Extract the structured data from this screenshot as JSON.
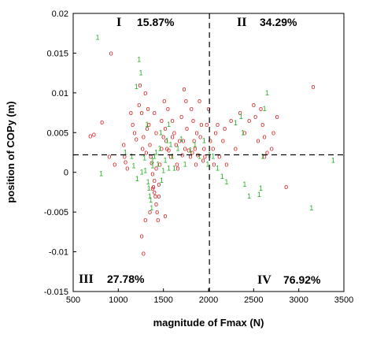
{
  "chart_data": {
    "type": "scatter",
    "xlabel": "magnitude of Fmax (N)",
    "ylabel": "position of COPy (m)",
    "xlim": [
      500,
      3500
    ],
    "ylim": [
      -0.015,
      0.02
    ],
    "x_ticks": [
      "500",
      "1000",
      "1500",
      "2000",
      "2500",
      "3000",
      "3500"
    ],
    "y_ticks": [
      "-0.015",
      "-0.01",
      "-0.005",
      "0",
      "0.005",
      "0.01",
      "0.015",
      "0.02"
    ],
    "grid": false,
    "threshold_x": 2010,
    "threshold_y": 0.0022,
    "quadrants": [
      {
        "numeral": "I",
        "percent": "15.87%"
      },
      {
        "numeral": "II",
        "percent": "34.29%"
      },
      {
        "numeral": "III",
        "percent": "27.78%"
      },
      {
        "numeral": "IV",
        "percent": "76.92%"
      }
    ],
    "series": [
      {
        "marker": "o",
        "color": "#d42020",
        "points": [
          [
            920,
            0.015
          ],
          [
            1240,
            0.011
          ],
          [
            690,
            0.0046
          ],
          [
            730,
            0.0048
          ],
          [
            820,
            0.0063
          ],
          [
            900,
            0.002
          ],
          [
            960,
            0.001
          ],
          [
            1060,
            0.0035
          ],
          [
            1070,
            0.002
          ],
          [
            1080,
            0.0013
          ],
          [
            1100,
            0.0005
          ],
          [
            1140,
            0.0075
          ],
          [
            1160,
            0.006
          ],
          [
            1180,
            0.005
          ],
          [
            1200,
            0.0042
          ],
          [
            1230,
            0.0085
          ],
          [
            1260,
            0.0075
          ],
          [
            1270,
            0.003
          ],
          [
            1280,
            0.0045
          ],
          [
            1300,
            0.01
          ],
          [
            1310,
            0.0025
          ],
          [
            1320,
            0.0055
          ],
          [
            1330,
            0.008
          ],
          [
            1340,
            0.006
          ],
          [
            1350,
            0.0035
          ],
          [
            1360,
            0.002
          ],
          [
            1370,
            0.0012
          ],
          [
            1380,
            -0.0002
          ],
          [
            1390,
            -0.0018
          ],
          [
            1400,
            -0.0025
          ],
          [
            1410,
            -0.003
          ],
          [
            1420,
            -0.004
          ],
          [
            1430,
            -0.005
          ],
          [
            1440,
            -0.006
          ],
          [
            1380,
            -0.002
          ],
          [
            1400,
            -0.001
          ],
          [
            1420,
            0.0005
          ],
          [
            1450,
            -0.0015
          ],
          [
            1460,
            0.001
          ],
          [
            1480,
            0.003
          ],
          [
            1500,
            0.0045
          ],
          [
            1510,
            0.009
          ],
          [
            1520,
            0.0055
          ],
          [
            1530,
            0.004
          ],
          [
            1550,
            0.008
          ],
          [
            1560,
            0.0028
          ],
          [
            1580,
            0.002
          ],
          [
            1600,
            0.0065
          ],
          [
            1620,
            0.005
          ],
          [
            1640,
            0.0035
          ],
          [
            1650,
            0.001
          ],
          [
            1660,
            0.0005
          ],
          [
            1680,
            0.004
          ],
          [
            1700,
            0.007
          ],
          [
            1710,
            0.0022
          ],
          [
            1720,
            0.004
          ],
          [
            1730,
            0.0105
          ],
          [
            1740,
            0.003
          ],
          [
            1750,
            0.009
          ],
          [
            1760,
            0.0055
          ],
          [
            1780,
            0.0028
          ],
          [
            1800,
            0.002
          ],
          [
            1810,
            0.008
          ],
          [
            1820,
            0.0025
          ],
          [
            1830,
            0.0065
          ],
          [
            1840,
            0.004
          ],
          [
            1850,
            0.003
          ],
          [
            1860,
            0.001
          ],
          [
            1870,
            0.005
          ],
          [
            1880,
            0.0022
          ],
          [
            1900,
            0.009
          ],
          [
            1910,
            0.0045
          ],
          [
            1920,
            0.006
          ],
          [
            1940,
            0.0015
          ],
          [
            1950,
            0.003
          ],
          [
            1960,
            0.002
          ],
          [
            1980,
            0.006
          ],
          [
            2000,
            0.008
          ],
          [
            1260,
            -0.008
          ],
          [
            1280,
            -0.0102
          ],
          [
            1300,
            -0.006
          ],
          [
            1350,
            -0.005
          ],
          [
            1520,
            -0.0055
          ],
          [
            1450,
            -0.003
          ],
          [
            1400,
            0.0075
          ],
          [
            1420,
            0.005
          ],
          [
            1480,
            0.0065
          ],
          [
            1540,
            0.003
          ],
          [
            1600,
            0.0045
          ],
          [
            2020,
            0.004
          ],
          [
            2050,
            0.003
          ],
          [
            2060,
            0.001
          ],
          [
            2080,
            0.005
          ],
          [
            2100,
            0.006
          ],
          [
            2120,
            0.002
          ],
          [
            2160,
            0.004
          ],
          [
            2200,
            0.001
          ],
          [
            2250,
            0.0065
          ],
          [
            2300,
            0.003
          ],
          [
            2350,
            0.0075
          ],
          [
            2400,
            0.005
          ],
          [
            2450,
            0.0065
          ],
          [
            2500,
            0.0085
          ],
          [
            2520,
            0.007
          ],
          [
            2550,
            0.004
          ],
          [
            2580,
            0.008
          ],
          [
            2600,
            0.006
          ],
          [
            2620,
            0.0045
          ],
          [
            2650,
            0.0025
          ],
          [
            2700,
            0.003
          ],
          [
            2720,
            0.005
          ],
          [
            2760,
            0.007
          ],
          [
            3160,
            0.0108
          ],
          [
            2860,
            -0.0018
          ],
          [
            2180,
            0.0055
          ],
          [
            2620,
            0.002
          ]
        ]
      },
      {
        "marker": "1",
        "color": "#22b022",
        "points": [
          [
            770,
            0.017
          ],
          [
            1230,
            0.0142
          ],
          [
            1250,
            0.0125
          ],
          [
            1200,
            0.0108
          ],
          [
            810,
            -0.0002
          ],
          [
            1080,
            0.0025
          ],
          [
            1150,
            0.002
          ],
          [
            1170,
            0.0008
          ],
          [
            1210,
            -0.0008
          ],
          [
            1260,
            0.0
          ],
          [
            1290,
            0.0018
          ],
          [
            1300,
            0.0002
          ],
          [
            1330,
            -0.0012
          ],
          [
            1340,
            -0.002
          ],
          [
            1350,
            -0.003
          ],
          [
            1360,
            -0.0035
          ],
          [
            1370,
            -0.0045
          ],
          [
            1380,
            0.0008
          ],
          [
            1400,
            0.002
          ],
          [
            1420,
            0.0025
          ],
          [
            1440,
            0.001
          ],
          [
            1460,
            0.003
          ],
          [
            1480,
            -0.001
          ],
          [
            1500,
            0.0002
          ],
          [
            1520,
            0.0015
          ],
          [
            1540,
            0.004
          ],
          [
            1560,
            0.006
          ],
          [
            1580,
            0.0035
          ],
          [
            1600,
            0.002
          ],
          [
            1620,
            0.0005
          ],
          [
            1660,
            0.003
          ],
          [
            1700,
            0.0042
          ],
          [
            1740,
            0.001
          ],
          [
            1800,
            0.0028
          ],
          [
            1850,
            0.0035
          ],
          [
            1900,
            0.002
          ],
          [
            1950,
            0.004
          ],
          [
            1990,
            0.001
          ],
          [
            2010,
            0.0022
          ],
          [
            2050,
            0.002
          ],
          [
            2100,
            0.0005
          ],
          [
            2150,
            -0.0005
          ],
          [
            2200,
            -0.0012
          ],
          [
            2300,
            0.0062
          ],
          [
            2360,
            0.007
          ],
          [
            2380,
            0.005
          ],
          [
            2400,
            -0.0015
          ],
          [
            2450,
            -0.003
          ],
          [
            2600,
            0.002
          ],
          [
            2620,
            0.008
          ],
          [
            2650,
            0.01
          ],
          [
            2580,
            -0.002
          ],
          [
            3380,
            0.0015
          ],
          [
            3140,
            -0.0045
          ],
          [
            2560,
            -0.0028
          ],
          [
            1560,
            0.0005
          ],
          [
            1470,
            0.005
          ],
          [
            1380,
            0.0015
          ],
          [
            1320,
            0.006
          ]
        ]
      }
    ]
  }
}
